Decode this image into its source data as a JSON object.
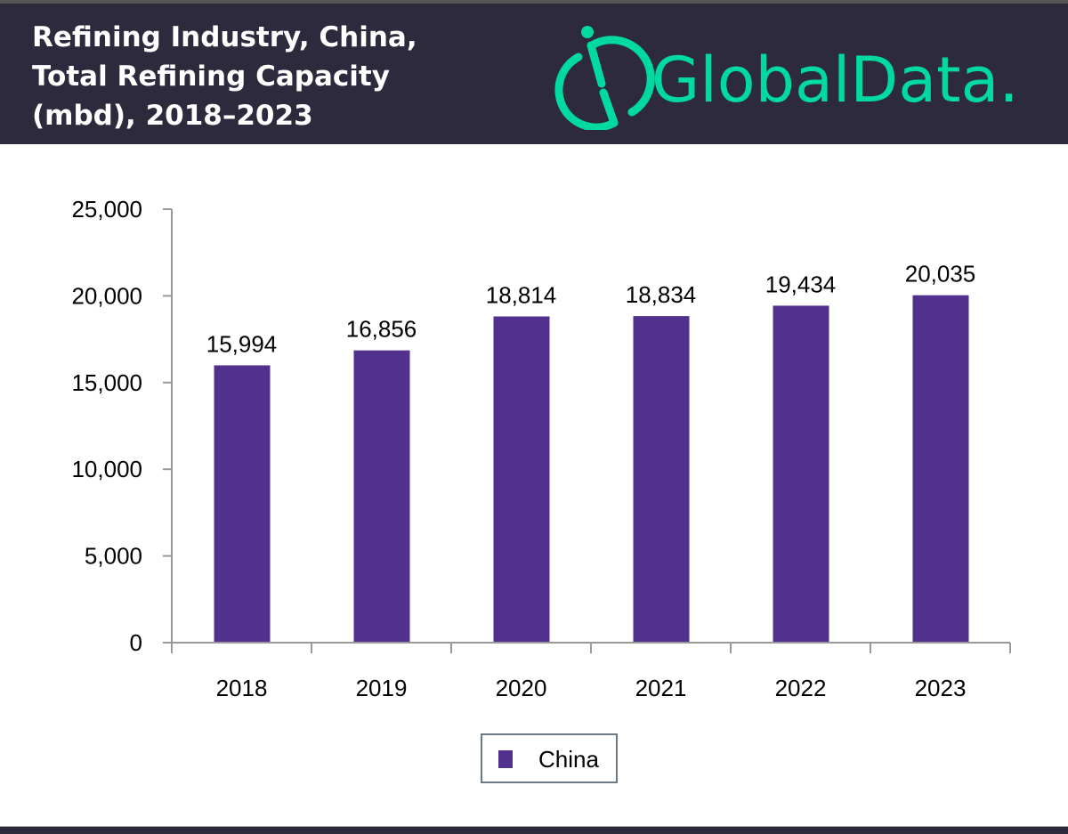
{
  "header": {
    "title": "Refining Industry, China,\nTotal Refining Capacity\n(mbd), 2018–2023",
    "logo_text": "GlobalData.",
    "background": "#2d2a3e",
    "logo_color": "#00d9a0"
  },
  "chart_data": {
    "type": "bar",
    "title": "Refining Industry, China, Total Refining Capacity (mbd), 2018–2023",
    "categories": [
      "2018",
      "2019",
      "2020",
      "2021",
      "2022",
      "2023"
    ],
    "series": [
      {
        "name": "China",
        "values": [
          15994,
          16856,
          18814,
          18834,
          19434,
          20035
        ],
        "color": "#52308e"
      }
    ],
    "data_labels": [
      "15,994",
      "16,856",
      "18,814",
      "18,834",
      "19,434",
      "20,035"
    ],
    "yticks": [
      "0",
      "5,000",
      "10,000",
      "15,000",
      "20,000",
      "25,000"
    ],
    "ytick_values": [
      0,
      5000,
      10000,
      15000,
      20000,
      25000
    ],
    "ylim": [
      0,
      25000
    ],
    "grid": false,
    "legend_placement": "bottom"
  }
}
